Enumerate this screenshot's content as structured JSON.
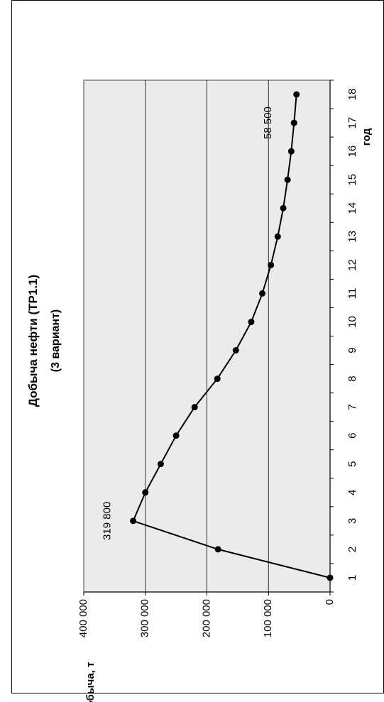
{
  "chart_data": {
    "type": "line",
    "title": "Добыча нефти (ТР1.1)",
    "subtitle": "(3 вариант)",
    "subtitle_color": "#4f8a3c",
    "xlabel": "год",
    "ylabel": "Добыча, т",
    "x": [
      1,
      2,
      3,
      4,
      5,
      6,
      7,
      8,
      9,
      10,
      11,
      12,
      13,
      14,
      15,
      16,
      17,
      18
    ],
    "y_ticks": [
      "0",
      "100 000",
      "200 000",
      "300 000",
      "400 000"
    ],
    "ylim": [
      0,
      400000
    ],
    "grid": true,
    "plot_background": "#ebebeb",
    "line_color": "#000000",
    "series": [
      {
        "values": [
          0,
          182000,
          319800,
          300000,
          275000,
          250000,
          220000,
          183000,
          153000,
          128000,
          110000,
          96000,
          85000,
          76000,
          69000,
          63000,
          58500,
          54500
        ]
      }
    ],
    "annotations": [
      {
        "text": "319 800",
        "index": 2
      },
      {
        "text": "58 500",
        "index": 16
      }
    ]
  }
}
